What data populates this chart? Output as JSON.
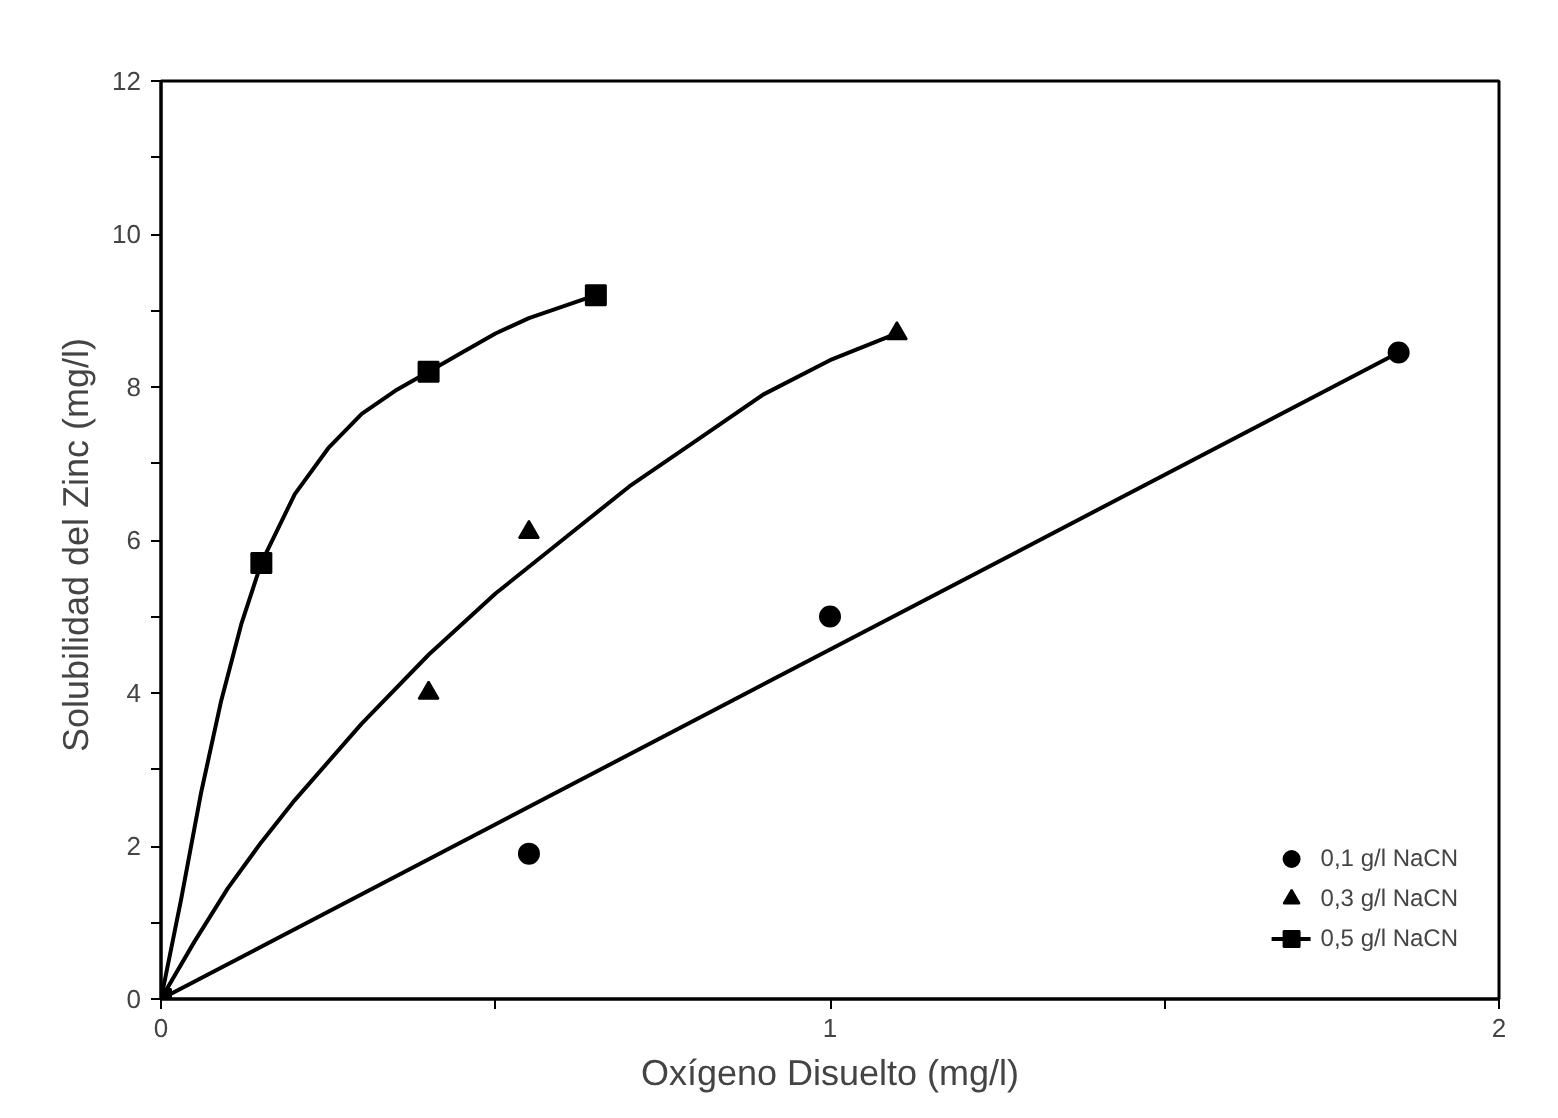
{
  "chart_data": {
    "type": "scatter",
    "xlabel": "Oxígeno Disuelto (mg/l)",
    "ylabel": "Solubilidad del Zinc  (mg/l)",
    "xlim": [
      0,
      2
    ],
    "ylim": [
      0,
      12
    ],
    "xticks": [
      0,
      {
        "value": 0.5,
        "label": null
      },
      1,
      {
        "value": 1.5,
        "label": null
      },
      2
    ],
    "yticks": [
      0,
      {
        "value": 1,
        "label": null
      },
      2,
      {
        "value": 3,
        "label": null
      },
      4,
      {
        "value": 5,
        "label": null
      },
      6,
      {
        "value": 7,
        "label": null
      },
      8,
      {
        "value": 9,
        "label": null
      },
      10,
      {
        "value": 11,
        "label": null
      },
      12
    ],
    "grid": false,
    "legend": "bottom right",
    "series": [
      {
        "name": "0,1 g/l NaCN",
        "marker": "circle",
        "color": "#000000",
        "x": [
          0.55,
          1.0,
          1.85
        ],
        "values": [
          1.9,
          5.0,
          8.45
        ]
      },
      {
        "name": "0,3 g/l NaCN",
        "marker": "triangle",
        "color": "#000000",
        "x": [
          0.4,
          0.55,
          1.1
        ],
        "values": [
          4.0,
          6.1,
          8.7
        ]
      },
      {
        "name": "0,5 g/l NaCN",
        "marker": "square",
        "color": "#000000",
        "x": [
          0,
          0.15,
          0.4,
          0.65
        ],
        "values": [
          0,
          5.7,
          8.2,
          9.2
        ]
      },
      {
        "type": "line",
        "marker": "none",
        "color": "#000000",
        "x": [
          0,
          1.85
        ],
        "values": [
          0,
          8.45
        ]
      },
      {
        "type": "line",
        "marker": "none",
        "color": "#000000",
        "x": [
          0,
          0.05,
          0.1,
          0.15,
          0.2,
          0.3,
          0.4,
          0.5,
          0.6,
          0.7,
          0.8,
          0.9,
          1.0,
          1.1
        ],
        "values": [
          0,
          0.75,
          1.45,
          2.05,
          2.6,
          3.6,
          4.5,
          5.3,
          6.0,
          6.7,
          7.3,
          7.9,
          8.35,
          8.7
        ]
      },
      {
        "type": "line",
        "marker": "none",
        "color": "#000000",
        "x": [
          0,
          0.03,
          0.06,
          0.09,
          0.12,
          0.15,
          0.2,
          0.25,
          0.3,
          0.35,
          0.4,
          0.45,
          0.5,
          0.55,
          0.6,
          0.65
        ],
        "values": [
          0,
          1.3,
          2.7,
          3.9,
          4.9,
          5.7,
          6.6,
          7.2,
          7.65,
          7.95,
          8.2,
          8.45,
          8.7,
          8.9,
          9.05,
          9.2
        ]
      }
    ]
  }
}
